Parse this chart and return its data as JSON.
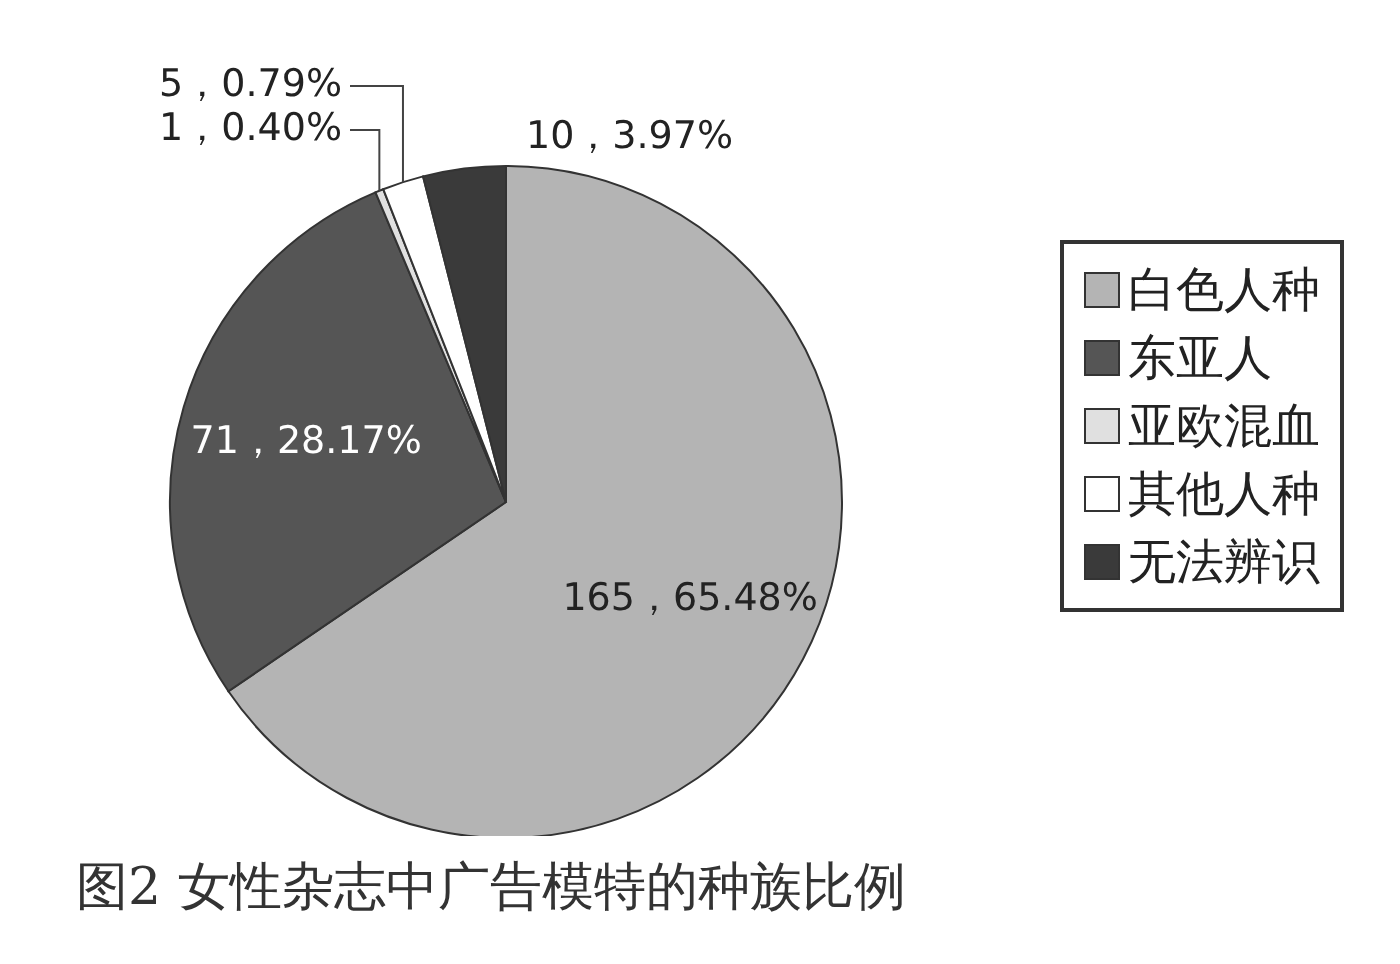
{
  "chart_data": {
    "type": "pie",
    "title": "图2 女性杂志中广告模特的种族比例",
    "categories": [
      "白色人种",
      "东亚人",
      "亚欧混血",
      "其他人种",
      "无法辨识"
    ],
    "values": [
      165,
      71,
      1,
      5,
      10
    ],
    "value_labels": [
      "165，65.48%",
      "71，28.17%",
      "1，0.40%",
      "5，0.79%",
      "10，3.97%"
    ],
    "colors": [
      "#b4b4b4",
      "#555555",
      "#e0e0e0",
      "#ffffff",
      "#3a3a3a"
    ],
    "legend": "right"
  }
}
